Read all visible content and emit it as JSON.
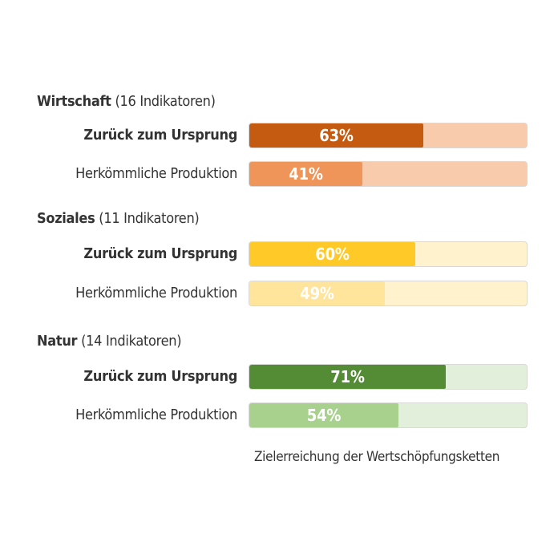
{
  "chart_data": {
    "type": "bar",
    "orientation": "horizontal",
    "unit": "%",
    "xlim": [
      0,
      100
    ],
    "groups": [
      {
        "name": "Wirtschaft",
        "meta": "(16 Indikatoren)",
        "colors": {
          "fill_dark": "#c55a11",
          "fill_light": "#f0955a",
          "track_dark": "#f8cbad",
          "track_light": "#f8cbad"
        },
        "bars": [
          {
            "label": "Zurück zum Ursprung",
            "value": 63,
            "value_label": "63%",
            "bold": true
          },
          {
            "label": "Herkömmliche Produktion",
            "value": 41,
            "value_label": "41%",
            "bold": false
          }
        ]
      },
      {
        "name": "Soziales",
        "meta": "(11 Indikatoren)",
        "colors": {
          "fill_dark": "#ffca28",
          "fill_light": "#ffe49b",
          "track_dark": "#fff2cc",
          "track_light": "#fff2cc"
        },
        "bars": [
          {
            "label": "Zurück zum Ursprung",
            "value": 60,
            "value_label": "60%",
            "bold": true
          },
          {
            "label": "Herkömmliche Produktion",
            "value": 49,
            "value_label": "49%",
            "bold": false
          }
        ]
      },
      {
        "name": "Natur",
        "meta": "(14 Indikatoren)",
        "colors": {
          "fill_dark": "#548c35",
          "fill_light": "#a9d18e",
          "track_dark": "#e2efda",
          "track_light": "#e2efda"
        },
        "bars": [
          {
            "label": "Zurück zum Ursprung",
            "value": 71,
            "value_label": "71%",
            "bold": true
          },
          {
            "label": "Herkömmliche Produktion",
            "value": 54,
            "value_label": "54%",
            "bold": false
          }
        ]
      }
    ],
    "footer": "Zielerreichung der Wertschöpfungsketten"
  }
}
